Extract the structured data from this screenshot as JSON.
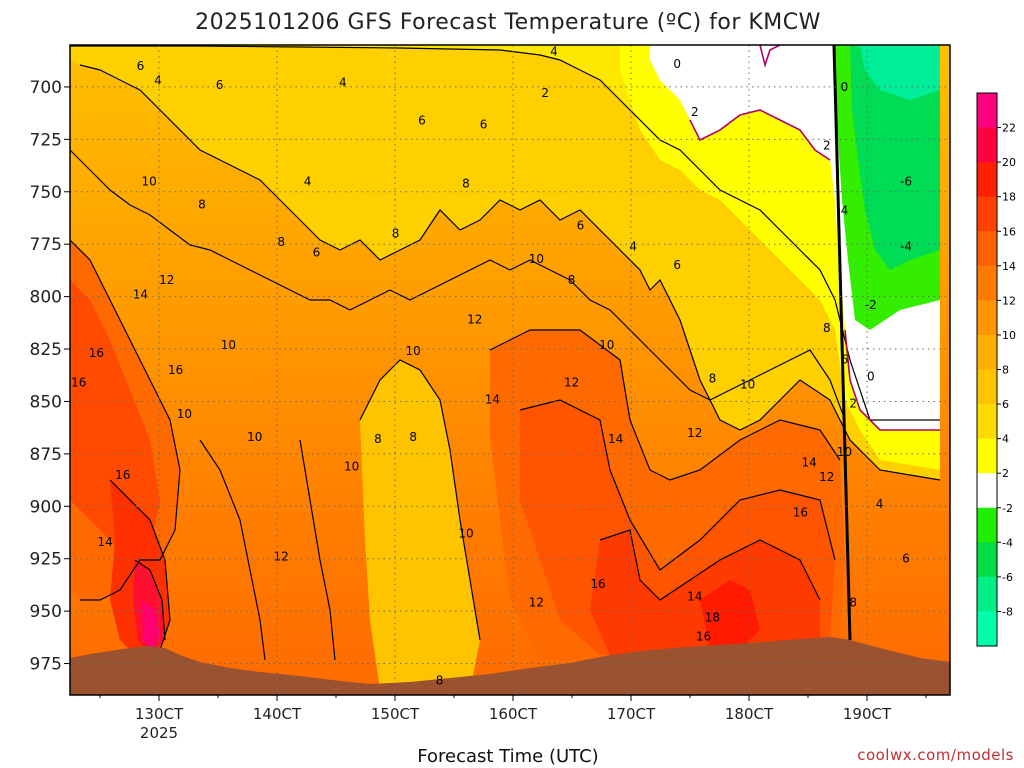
{
  "chart_data": {
    "type": "heatmap",
    "title": "2025101206 GFS Forecast Temperature (ºC) for KMCW",
    "xlabel": "Forecast Time (UTC)",
    "ylabel": "",
    "credit": "coolwx.com/models",
    "x_ticks": [
      "130CT",
      "140CT",
      "150CT",
      "160CT",
      "170CT",
      "180CT",
      "190CT"
    ],
    "x_year_label": "2025",
    "y_ticks": [
      "700",
      "725",
      "750",
      "775",
      "800",
      "825",
      "850",
      "875",
      "900",
      "925",
      "950",
      "975"
    ],
    "y_range_hpa": [
      680,
      990
    ],
    "colorbar": {
      "ticks": [
        "22",
        "20",
        "18",
        "16",
        "14",
        "12",
        "10",
        "8",
        "6",
        "4",
        "2",
        "-2",
        "-4",
        "-6",
        "-8"
      ],
      "colors": [
        "#ff0080",
        "#ff0040",
        "#ff2000",
        "#ff4000",
        "#ff6000",
        "#ff7a00",
        "#ff9500",
        "#ffae00",
        "#ffc400",
        "#ffdc00",
        "#ffff00",
        "#ffffff",
        "#22ee00",
        "#00dd44",
        "#00ee88",
        "#00ffaa"
      ]
    },
    "contour_labels": [
      {
        "text": "6",
        "t": 0.08,
        "p": 690
      },
      {
        "text": "4",
        "t": 0.1,
        "p": 697
      },
      {
        "text": "6",
        "t": 0.17,
        "p": 699
      },
      {
        "text": "4",
        "t": 0.31,
        "p": 698
      },
      {
        "text": "4",
        "t": 0.55,
        "p": 683
      },
      {
        "text": "2",
        "t": 0.54,
        "p": 703
      },
      {
        "text": "0",
        "t": 0.69,
        "p": 689
      },
      {
        "text": "0",
        "t": 0.88,
        "p": 700
      },
      {
        "text": "2",
        "t": 0.71,
        "p": 712
      },
      {
        "text": "6",
        "t": 0.4,
        "p": 716
      },
      {
        "text": "6",
        "t": 0.47,
        "p": 718
      },
      {
        "text": "2",
        "t": 0.86,
        "p": 728
      },
      {
        "text": "10",
        "t": 0.09,
        "p": 745
      },
      {
        "text": "4",
        "t": 0.27,
        "p": 745
      },
      {
        "text": "8",
        "t": 0.15,
        "p": 756
      },
      {
        "text": "8",
        "t": 0.45,
        "p": 746
      },
      {
        "text": "-6",
        "t": 0.95,
        "p": 745
      },
      {
        "text": "6",
        "t": 0.58,
        "p": 766
      },
      {
        "text": "4",
        "t": 0.88,
        "p": 759
      },
      {
        "text": "8",
        "t": 0.24,
        "p": 774
      },
      {
        "text": "8",
        "t": 0.37,
        "p": 770
      },
      {
        "text": "6",
        "t": 0.28,
        "p": 779
      },
      {
        "text": "4",
        "t": 0.64,
        "p": 776
      },
      {
        "text": "-4",
        "t": 0.95,
        "p": 776
      },
      {
        "text": "10",
        "t": 0.53,
        "p": 782
      },
      {
        "text": "6",
        "t": 0.69,
        "p": 785
      },
      {
        "text": "12",
        "t": 0.11,
        "p": 792
      },
      {
        "text": "8",
        "t": 0.57,
        "p": 792
      },
      {
        "text": "14",
        "t": 0.08,
        "p": 799
      },
      {
        "text": "-2",
        "t": 0.91,
        "p": 804
      },
      {
        "text": "12",
        "t": 0.46,
        "p": 811
      },
      {
        "text": "8",
        "t": 0.86,
        "p": 815
      },
      {
        "text": "10",
        "t": 0.18,
        "p": 823
      },
      {
        "text": "10",
        "t": 0.61,
        "p": 823
      },
      {
        "text": "10",
        "t": 0.39,
        "p": 826
      },
      {
        "text": "16",
        "t": 0.03,
        "p": 827
      },
      {
        "text": "6",
        "t": 0.88,
        "p": 830
      },
      {
        "text": "16",
        "t": 0.12,
        "p": 835
      },
      {
        "text": "16",
        "t": 0.01,
        "p": 841
      },
      {
        "text": "8",
        "t": 0.73,
        "p": 839
      },
      {
        "text": "12",
        "t": 0.57,
        "p": 841
      },
      {
        "text": "10",
        "t": 0.77,
        "p": 842
      },
      {
        "text": "0",
        "t": 0.91,
        "p": 838
      },
      {
        "text": "14",
        "t": 0.48,
        "p": 849
      },
      {
        "text": "2",
        "t": 0.89,
        "p": 851
      },
      {
        "text": "10",
        "t": 0.13,
        "p": 856
      },
      {
        "text": "12",
        "t": 0.71,
        "p": 865
      },
      {
        "text": "10",
        "t": 0.21,
        "p": 867
      },
      {
        "text": "8",
        "t": 0.35,
        "p": 868
      },
      {
        "text": "8",
        "t": 0.39,
        "p": 867
      },
      {
        "text": "14",
        "t": 0.62,
        "p": 868
      },
      {
        "text": "10",
        "t": 0.88,
        "p": 874
      },
      {
        "text": "14",
        "t": 0.84,
        "p": 879
      },
      {
        "text": "10",
        "t": 0.32,
        "p": 881
      },
      {
        "text": "12",
        "t": 0.86,
        "p": 886
      },
      {
        "text": "16",
        "t": 0.06,
        "p": 885
      },
      {
        "text": "4",
        "t": 0.92,
        "p": 899
      },
      {
        "text": "16",
        "t": 0.83,
        "p": 903
      },
      {
        "text": "10",
        "t": 0.45,
        "p": 913
      },
      {
        "text": "14",
        "t": 0.04,
        "p": 917
      },
      {
        "text": "12",
        "t": 0.24,
        "p": 924
      },
      {
        "text": "6",
        "t": 0.95,
        "p": 925
      },
      {
        "text": "16",
        "t": 0.6,
        "p": 937
      },
      {
        "text": "14",
        "t": 0.71,
        "p": 943
      },
      {
        "text": "12",
        "t": 0.53,
        "p": 946
      },
      {
        "text": "8",
        "t": 0.89,
        "p": 946
      },
      {
        "text": "18",
        "t": 0.73,
        "p": 953
      },
      {
        "text": "16",
        "t": 0.72,
        "p": 962
      },
      {
        "text": "8",
        "t": 0.42,
        "p": 983
      }
    ]
  }
}
